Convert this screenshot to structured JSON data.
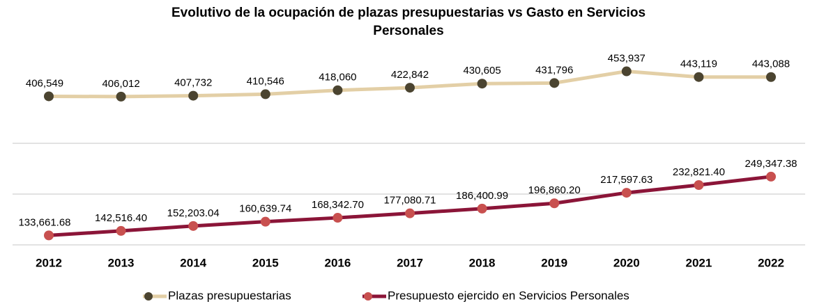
{
  "chart_data": {
    "type": "line",
    "title_lines": [
      "Evolutivo de la ocupación de plazas presupuestarias vs Gasto en Servicios",
      "Personales"
    ],
    "categories": [
      "2012",
      "2013",
      "2014",
      "2015",
      "2016",
      "2017",
      "2018",
      "2019",
      "2020",
      "2021",
      "2022"
    ],
    "ylim": [
      115000,
      515000
    ],
    "yticks": [
      115000,
      215000,
      315000
    ],
    "y2lim": [
      125000,
      510000
    ],
    "grid": true,
    "legend": "bottom",
    "series": [
      {
        "name": "Plazas presupuestarias",
        "color": "#e3cfa6",
        "marker_color": "#4b4430",
        "axis": "y2",
        "values": [
          406549,
          406012,
          407732,
          410546,
          418060,
          422842,
          430605,
          431796,
          453937,
          443119,
          443088
        ],
        "value_labels": [
          "406,549",
          "406,012",
          "407,732",
          "410,546",
          "418,060",
          "422,842",
          "430,605",
          "431,796",
          "453,937",
          "443,119",
          "443,088"
        ]
      },
      {
        "name": "Presupuesto ejercido en Servicios Personales",
        "color": "#8b1538",
        "marker_color": "#c8504f",
        "values": [
          133661.68,
          142516.4,
          152203.04,
          160639.74,
          168342.7,
          177080.71,
          186400.99,
          196860.2,
          217597.63,
          232821.4,
          249347.38
        ],
        "value_labels": [
          "133,661.68",
          "142,516.40",
          "152,203.04",
          "160,639.74",
          "168,342.70",
          "177,080.71",
          "186,400.99",
          "196,860.20",
          "217,597.63",
          "232,821.40",
          "249,347.38"
        ]
      }
    ]
  }
}
